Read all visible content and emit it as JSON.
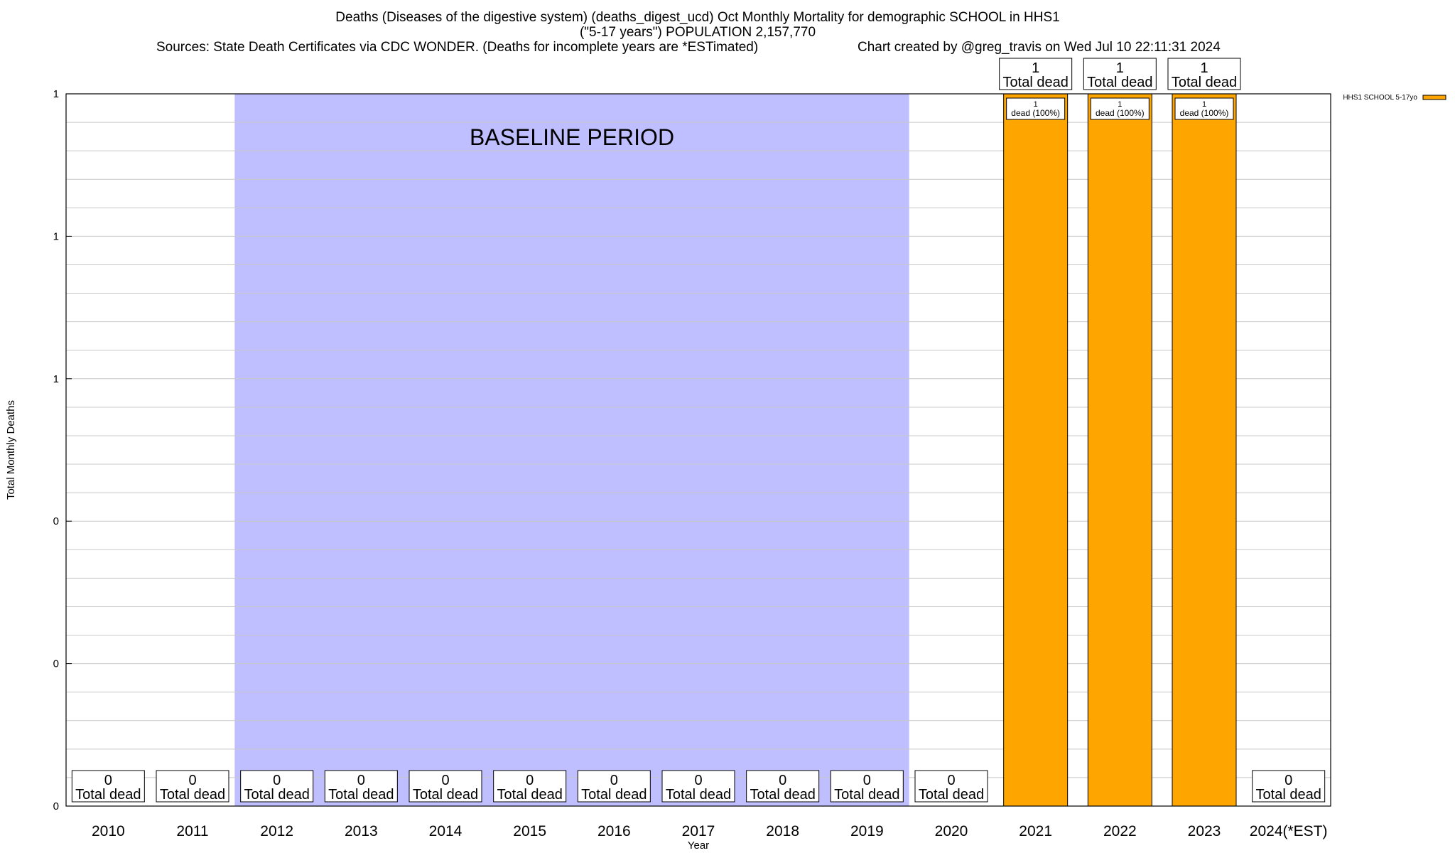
{
  "chart_data": {
    "type": "bar",
    "title_lines": [
      "Deaths (Diseases of the digestive system) (deaths_digest_ucd) Oct Monthly Mortality for demographic SCHOOL in HHS1",
      "(\"5-17 years\") POPULATION 2,157,770"
    ],
    "source_text": "Sources: State Death Certificates via CDC WONDER. (Deaths for incomplete years are *ESTimated)",
    "credit_text": "Chart created by @greg_travis on Wed Jul 10 22:11:31 2024",
    "xlabel": "Year",
    "ylabel": "Total Monthly Deaths",
    "ylim": [
      0,
      1
    ],
    "y_tick_labels": [
      "0",
      "0",
      "0",
      "1",
      "1",
      "1"
    ],
    "y_minor_gridlines_per_major": 5,
    "categories": [
      "2010",
      "2011",
      "2012",
      "2013",
      "2014",
      "2015",
      "2016",
      "2017",
      "2018",
      "2019",
      "2020",
      "2021",
      "2022",
      "2023",
      "2024(*EST)"
    ],
    "series": [
      {
        "name": "HHS1 SCHOOL 5-17yo",
        "color": "#FFA500",
        "values": [
          0,
          0,
          0,
          0,
          0,
          0,
          0,
          0,
          0,
          0,
          0,
          1,
          1,
          1,
          0
        ]
      }
    ],
    "total_labels": [
      "0",
      "0",
      "0",
      "0",
      "0",
      "0",
      "0",
      "0",
      "0",
      "0",
      "0",
      "1",
      "1",
      "1",
      "0"
    ],
    "total_label_suffix": "Total dead",
    "bar_labels": [
      null,
      null,
      null,
      null,
      null,
      null,
      null,
      null,
      null,
      null,
      null,
      [
        "1",
        "dead (100%)"
      ],
      [
        "1",
        "dead (100%)"
      ],
      [
        "1",
        "dead (100%)"
      ],
      null
    ],
    "baseline_period": {
      "label": "BASELINE PERIOD",
      "start_category": "2012",
      "end_category": "2019",
      "color": "#BFBFFF"
    },
    "legend_position": "top-right",
    "grid": true
  }
}
